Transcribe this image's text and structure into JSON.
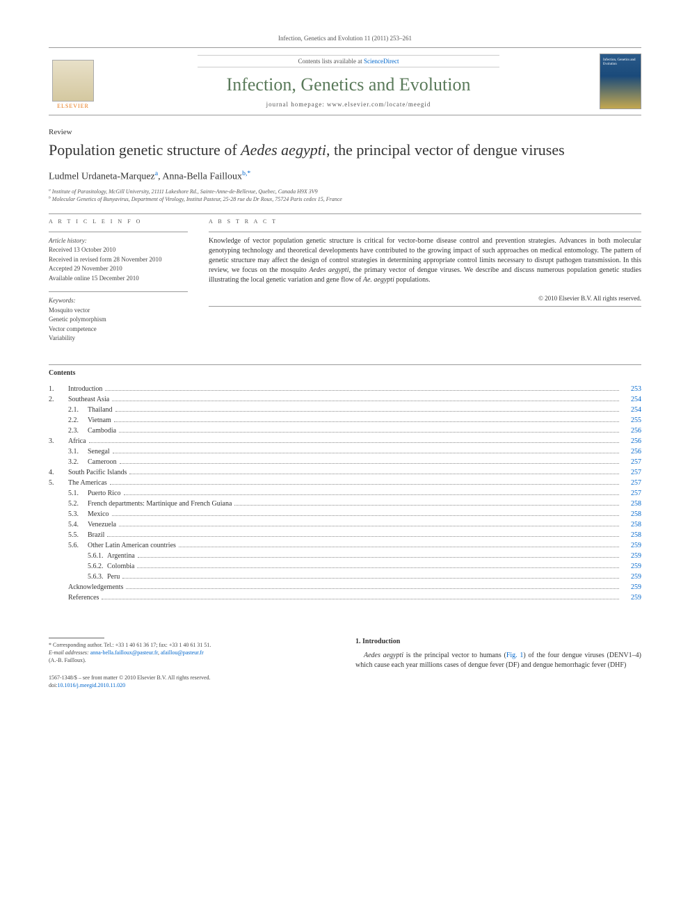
{
  "header": {
    "citation": "Infection, Genetics and Evolution 11 (2011) 253–261",
    "contents_available": "Contents lists available at ",
    "sciencedirect": "ScienceDirect",
    "journal_name": "Infection, Genetics and Evolution",
    "homepage_label": "journal homepage: www.elsevier.com/locate/meegid",
    "elsevier": "ELSEVIER",
    "cover_text": "Infection, Genetics and Evolution"
  },
  "article": {
    "type": "Review",
    "title_before": "Population genetic structure of ",
    "title_italic": "Aedes aegypti",
    "title_after": ", the principal vector of dengue viruses",
    "authors": {
      "a1_name": "Ludmel Urdaneta-Marquez",
      "a1_aff": "a",
      "a2_name": "Anna-Bella Failloux",
      "a2_aff": "b,",
      "corr": "*"
    },
    "affiliations": {
      "a": "Institute of Parasitology, McGill University, 21111 Lakeshore Rd., Sainte-Anne-de-Bellevue, Quebec, Canada H9X 3V9",
      "b": "Molecular Genetics of Bunyavirus, Department of Virology, Institut Pasteur, 25-28 rue du Dr Roux, 75724 Paris cedex 15, France"
    }
  },
  "info": {
    "heading": "A R T I C L E   I N F O",
    "history_label": "Article history:",
    "received": "Received 13 October 2010",
    "revised": "Received in revised form 28 November 2010",
    "accepted": "Accepted 29 November 2010",
    "online": "Available online 15 December 2010",
    "keywords_label": "Keywords:",
    "kw1": "Mosquito vector",
    "kw2": "Genetic polymorphism",
    "kw3": "Vector competence",
    "kw4": "Variability"
  },
  "abstract": {
    "heading": "A B S T R A C T",
    "text_before": "Knowledge of vector population genetic structure is critical for vector-borne disease control and prevention strategies. Advances in both molecular genotyping technology and theoretical developments have contributed to the growing impact of such approaches on medical entomology. The pattern of genetic structure may affect the design of control strategies in determining appropriate control limits necessary to disrupt pathogen transmission. In this review, we focus on the mosquito ",
    "species1": "Aedes aegypti",
    "text_middle": ", the primary vector of dengue viruses. We describe and discuss numerous population genetic studies illustrating the local genetic variation and gene flow of ",
    "species2": "Ae. aegypti",
    "text_after": " populations.",
    "copyright": "© 2010 Elsevier B.V. All rights reserved."
  },
  "contents": {
    "heading": "Contents",
    "items": [
      {
        "num": "1.",
        "label": "Introduction",
        "page": "253",
        "indent": 0
      },
      {
        "num": "2.",
        "label": "Southeast Asia",
        "page": "254",
        "indent": 0
      },
      {
        "num": "2.1.",
        "label": "Thailand",
        "page": "254",
        "indent": 1
      },
      {
        "num": "2.2.",
        "label": "Vietnam",
        "page": "255",
        "indent": 1
      },
      {
        "num": "2.3.",
        "label": "Cambodia",
        "page": "256",
        "indent": 1
      },
      {
        "num": "3.",
        "label": "Africa",
        "page": "256",
        "indent": 0
      },
      {
        "num": "3.1.",
        "label": "Senegal",
        "page": "256",
        "indent": 1
      },
      {
        "num": "3.2.",
        "label": "Cameroon",
        "page": "257",
        "indent": 1
      },
      {
        "num": "4.",
        "label": "South Pacific Islands",
        "page": "257",
        "indent": 0
      },
      {
        "num": "5.",
        "label": "The Americas",
        "page": "257",
        "indent": 0
      },
      {
        "num": "5.1.",
        "label": "Puerto Rico",
        "page": "257",
        "indent": 1
      },
      {
        "num": "5.2.",
        "label": "French departments: Martinique and French Guiana",
        "page": "258",
        "indent": 1
      },
      {
        "num": "5.3.",
        "label": "Mexico",
        "page": "258",
        "indent": 1
      },
      {
        "num": "5.4.",
        "label": "Venezuela",
        "page": "258",
        "indent": 1
      },
      {
        "num": "5.5.",
        "label": "Brazil",
        "page": "258",
        "indent": 1
      },
      {
        "num": "5.6.",
        "label": "Other Latin American countries",
        "page": "259",
        "indent": 1
      },
      {
        "num": "5.6.1.",
        "label": "Argentina",
        "page": "259",
        "indent": 2
      },
      {
        "num": "5.6.2.",
        "label": "Colombia",
        "page": "259",
        "indent": 2
      },
      {
        "num": "5.6.3.",
        "label": "Peru",
        "page": "259",
        "indent": 2
      },
      {
        "num": "",
        "label": "Acknowledgements",
        "page": "259",
        "indent": 0
      },
      {
        "num": "",
        "label": "References",
        "page": "259",
        "indent": 0
      }
    ]
  },
  "footnote": {
    "corr": "* Corresponding author. Tel.: +33 1 40 61 36 17; fax: +33 1 40 61 31 51.",
    "email_label": "E-mail addresses:",
    "email1": "anna-bella.failloux@pasteur.fr",
    "email2": "afaillou@pasteur.fr",
    "email_name": "(A.-B. Failloux)."
  },
  "doi": {
    "issn": "1567-1348/$ – see front matter © 2010 Elsevier B.V. All rights reserved.",
    "doi_text": "doi:",
    "doi_link": "10.1016/j.meegid.2010.11.020"
  },
  "intro": {
    "heading": "1. Introduction",
    "species": "Aedes aegypti",
    "text_before": " is the principal vector to humans (",
    "fig": "Fig. 1",
    "text_after": ") of the four dengue viruses (DENV1–4) which cause each year millions cases of dengue fever (DF) and dengue hemorrhagic fever (DHF)"
  },
  "colors": {
    "link": "#0066cc",
    "journal_green": "#5a7a5a",
    "elsevier_orange": "#e8730f"
  }
}
